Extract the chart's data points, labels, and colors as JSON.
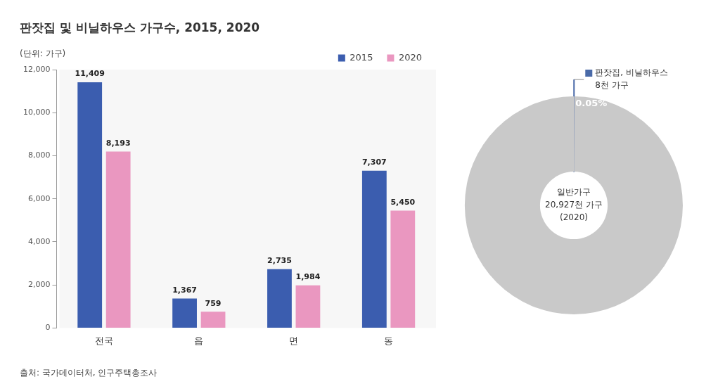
{
  "chart_data": [
    {
      "type": "bar",
      "title": "판잣집 및 비닐하우스 가구수, 2015, 2020",
      "ylabel": "(단위: 가구)",
      "categories": [
        "전국",
        "읍",
        "면",
        "동"
      ],
      "series": [
        {
          "name": "2015",
          "color": "#3b5daf",
          "values": [
            11409,
            1367,
            2735,
            7307
          ],
          "value_labels": [
            "11,409",
            "1,367",
            "2,735",
            "7,307"
          ]
        },
        {
          "name": "2020",
          "color": "#ea97c0",
          "values": [
            8193,
            759,
            1984,
            5450
          ],
          "value_labels": [
            "8,193",
            "759",
            "1,984",
            "5,450"
          ]
        }
      ],
      "ylim": [
        0,
        12000
      ],
      "yticks": [
        {
          "value": 0,
          "label": "0"
        },
        {
          "value": 2000,
          "label": "2,000"
        },
        {
          "value": 4000,
          "label": "4,000"
        },
        {
          "value": 6000,
          "label": "6,000"
        },
        {
          "value": 8000,
          "label": "8,000"
        },
        {
          "value": 10000,
          "label": "10,000"
        },
        {
          "value": 12000,
          "label": "12,000"
        }
      ],
      "legend": "top right",
      "annotations": [
        "출처: 국가데이터처, 인구주택총조사"
      ]
    },
    {
      "type": "donut",
      "categories": [
        "판잣집, 비닐하우스 8천 가구",
        "일반가구 20,927천 가구 (2020)"
      ],
      "values": [
        0.05,
        99.95
      ],
      "colors": [
        "#4a6aa8",
        "#c9c9c9"
      ],
      "value_labels": [
        "0.05%",
        null
      ]
    }
  ]
}
